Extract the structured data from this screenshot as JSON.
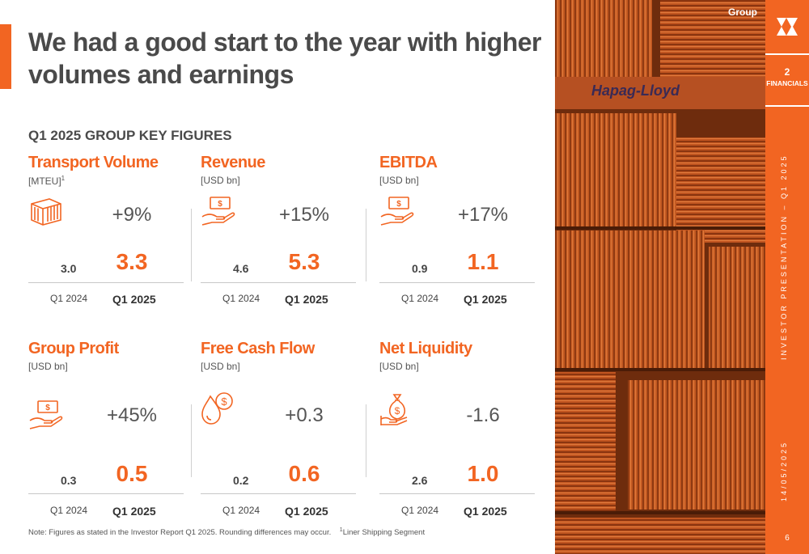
{
  "title": "We had a good start to the year with higher volumes and earnings",
  "section_title": "Q1 2025 GROUP KEY FIGURES",
  "cards": [
    {
      "title": "Transport Volume",
      "unit": "[MTEU]",
      "unit_sup": "1",
      "icon": "container-icon",
      "change": "+9%",
      "prev": "3.0",
      "cur": "3.3",
      "prev_label": "Q1 2024",
      "cur_label": "Q1 2025"
    },
    {
      "title": "Revenue",
      "unit": "[USD bn]",
      "icon": "money-hand-icon",
      "change": "+15%",
      "prev": "4.6",
      "cur": "5.3",
      "prev_label": "Q1 2024",
      "cur_label": "Q1 2025"
    },
    {
      "title": "EBITDA",
      "unit": "[USD bn]",
      "icon": "money-hand-icon",
      "change": "+17%",
      "prev": "0.9",
      "cur": "1.1",
      "prev_label": "Q1 2024",
      "cur_label": "Q1 2025"
    },
    {
      "title": "Group Profit",
      "unit": "[USD bn]",
      "icon": "money-hand-icon",
      "change": "+45%",
      "prev": "0.3",
      "cur": "0.5",
      "prev_label": "Q1 2024",
      "cur_label": "Q1 2025"
    },
    {
      "title": "Free Cash Flow",
      "unit": "[USD bn]",
      "icon": "cash-drop-icon",
      "change": "+0.3",
      "prev": "0.2",
      "cur": "0.6",
      "prev_label": "Q1 2024",
      "cur_label": "Q1 2025"
    },
    {
      "title": "Net Liquidity",
      "unit": "[USD bn]",
      "icon": "money-bag-icon",
      "change": "-1.6",
      "prev": "2.6",
      "cur": "1.0",
      "prev_label": "Q1 2024",
      "cur_label": "Q1 2025"
    }
  ],
  "note": "Note: Figures as stated in the Investor Report Q1 2025. Rounding differences may occur.",
  "note_footnote": "Liner Shipping Segment",
  "note_footnote_mark": "1",
  "sidebar": {
    "group_label": "Group",
    "nav_number": "2",
    "nav_label": "FINANCIALS",
    "vertical_text": "INVESTOR PRESENTATION – Q1 2025",
    "date": "14/05/2025",
    "page_number": "6"
  },
  "photo": {
    "container_text": "Hapag-Lloyd"
  },
  "colors": {
    "accent": "#f26522",
    "text": "#4a4a4a",
    "container": "#c4571d"
  }
}
